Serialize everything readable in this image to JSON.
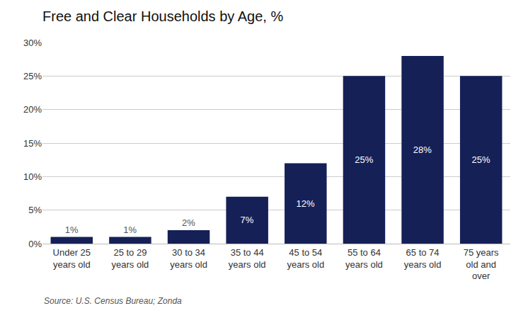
{
  "chart_data": {
    "type": "bar",
    "title": "Free and Clear Households by Age, %",
    "categories": [
      "Under 25\nyears old",
      "25 to 29\nyears old",
      "30 to 34\nyears old",
      "35 to 44\nyears old",
      "45 to 54\nyears old",
      "55 to 64\nyears old",
      "65 to 74\nyears old",
      "75 years\nold and\nover"
    ],
    "values": [
      1,
      1,
      2,
      7,
      12,
      25,
      28,
      25
    ],
    "value_labels": [
      "1%",
      "1%",
      "2%",
      "7%",
      "12%",
      "25%",
      "28%",
      "25%"
    ],
    "data_labels": true,
    "color": "#152057",
    "ylim": [
      0,
      30
    ],
    "yticks": [
      {
        "value": 0,
        "label": "0%"
      },
      {
        "value": 5,
        "label": "5%"
      },
      {
        "value": 10,
        "label": "10%"
      },
      {
        "value": 15,
        "label": "15%"
      },
      {
        "value": 20,
        "label": "20%"
      },
      {
        "value": 25,
        "label": "25%"
      },
      {
        "value": 30,
        "label": "30%"
      }
    ],
    "grid": true,
    "annotations": [
      "Source: U.S. Census Bureau; Zonda"
    ]
  }
}
